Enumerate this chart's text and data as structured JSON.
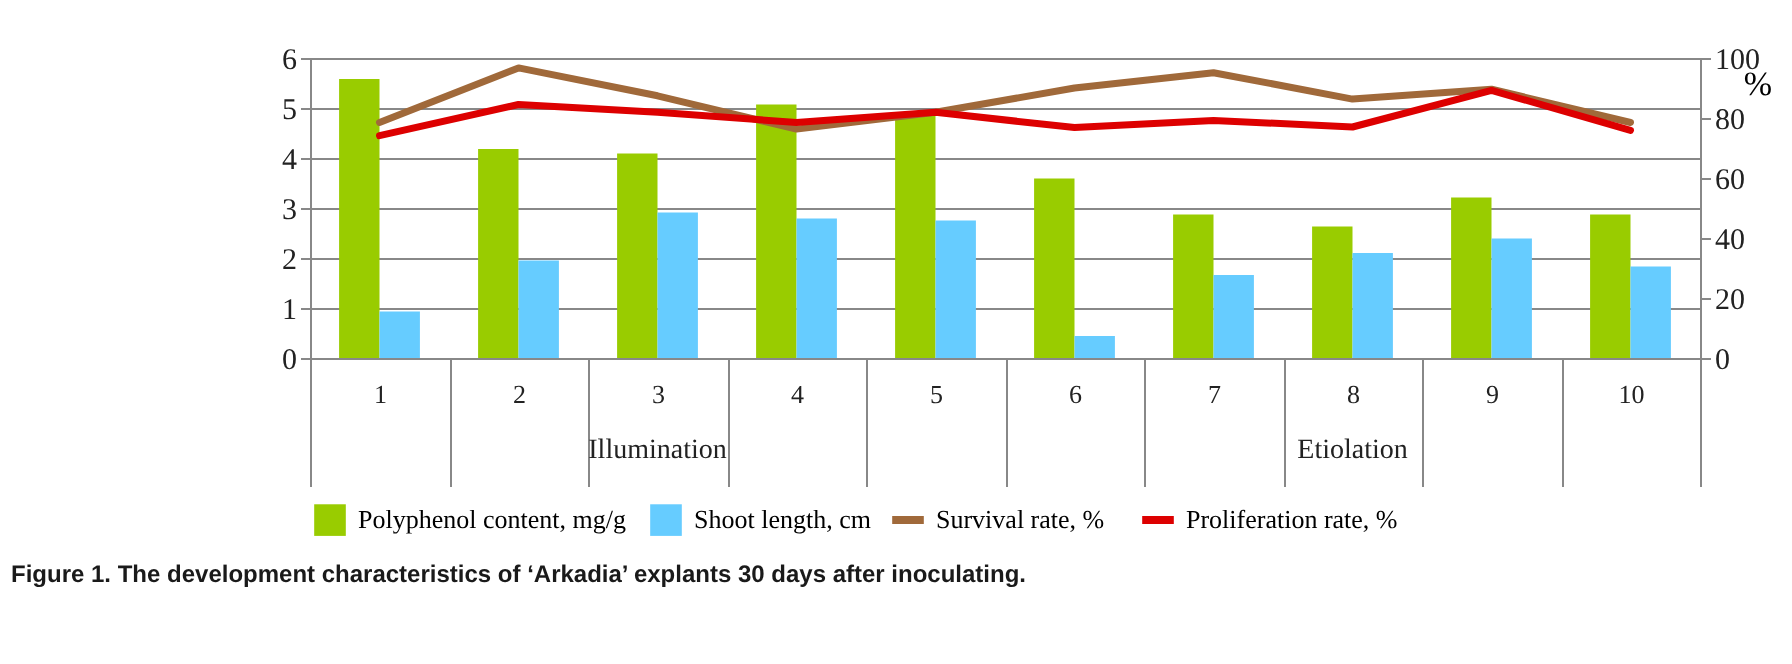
{
  "chart_data": {
    "type": "bar",
    "title": "Figure 1. The development characteristics of ‘Arkadia’ explants 30 days after inoculating.",
    "y2label": "%",
    "categories": [
      "1",
      "2",
      "3",
      "4",
      "5",
      "6",
      "7",
      "8",
      "9",
      "10"
    ],
    "series": [
      {
        "name": "Polyphenol content, mg/g",
        "color": "#99cc00",
        "values": [
          5.58,
          4.18,
          4.09,
          5.07,
          4.9,
          3.59,
          2.87,
          2.63,
          3.21,
          2.87
        ]
      },
      {
        "name": "Shoot length, cm",
        "color": "#66ccff",
        "values": [
          0.93,
          1.95,
          2.91,
          2.79,
          2.75,
          0.44,
          1.66,
          2.1,
          2.39,
          1.83
        ]
      },
      {
        "name": "Survival rate, %",
        "color": "#a0693a",
        "type": "line",
        "axis": "y2",
        "values": [
          78.5,
          96.7,
          87.4,
          76.3,
          81.9,
          90.0,
          95.1,
          86.3,
          89.6,
          78.5
        ]
      },
      {
        "name": "Proliferation rate, %",
        "color": "#dd0000",
        "type": "line",
        "axis": "y2",
        "values": [
          74.1,
          84.5,
          81.9,
          78.5,
          81.9,
          76.8,
          79.2,
          77.0,
          89.2,
          75.9
        ]
      }
    ],
    "ylim": [
      0,
      6
    ],
    "yticks": [
      0,
      1,
      2,
      3,
      4,
      5,
      6
    ],
    "y2lim": [
      0,
      100
    ],
    "y2ticks": [
      0,
      20,
      40,
      60,
      80,
      100
    ],
    "annotations": [
      "Illumination",
      "Etiolation"
    ],
    "grid": "y",
    "legend": "bottom"
  }
}
